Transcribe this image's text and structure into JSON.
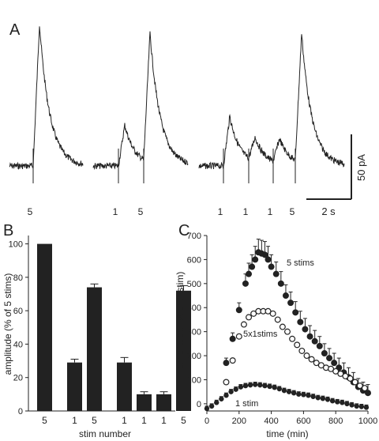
{
  "panel_labels": {
    "a": "A",
    "b": "B",
    "c": "C"
  },
  "colors": {
    "ink": "#222222",
    "open_marker_fill": "#ffffff"
  },
  "traces": {
    "stim_labels": [
      "5",
      "1",
      "5",
      "1",
      "1",
      "1",
      "5"
    ],
    "scale_current": "50 pA",
    "scale_time": "2 s"
  },
  "chart_data": [
    {
      "panel": "A",
      "type": "line",
      "title": "",
      "description_units": {
        "y": "pA",
        "x": "s"
      },
      "segments": [
        {
          "stims": [
            "5"
          ],
          "peak_responses_pA": [
            115
          ]
        },
        {
          "stims": [
            "1",
            "5"
          ],
          "peak_responses_pA": [
            33,
            105
          ]
        },
        {
          "stims": [
            "1",
            "1",
            "1",
            "5"
          ],
          "peak_responses_pA": [
            40,
            20,
            20,
            105
          ]
        }
      ]
    },
    {
      "panel": "B",
      "type": "bar",
      "xlabel": "stim number",
      "ylabel": "amplitude (% of 5 stims)",
      "categories": [
        "5",
        "1",
        "5",
        "1",
        "1",
        "1",
        "5"
      ],
      "groups": [
        [
          0
        ],
        [
          1,
          2
        ],
        [
          3,
          4,
          5,
          6
        ]
      ],
      "values": [
        100,
        29,
        74,
        29,
        10,
        10,
        72
      ],
      "errors": [
        0,
        2,
        2,
        3,
        1.5,
        1.5,
        3
      ],
      "ylim": [
        0,
        105
      ],
      "yticks": [
        0,
        20,
        40,
        60,
        80,
        100
      ]
    },
    {
      "panel": "C",
      "type": "scatter",
      "xlabel": "time (min)",
      "ylabel": "amplitude (% of 1 stim)",
      "xlim": [
        0,
        1000
      ],
      "ylim": [
        -30,
        700
      ],
      "xticks": [
        0,
        200,
        400,
        600,
        800,
        1000
      ],
      "yticks": [
        0,
        100,
        200,
        300,
        400,
        500,
        600,
        700
      ],
      "series": [
        {
          "name": "5 stims",
          "marker": "filled",
          "x": [
            120,
            160,
            200,
            240,
            260,
            280,
            300,
            320,
            340,
            360,
            380,
            400,
            430,
            460,
            490,
            520,
            550,
            580,
            610,
            640,
            670,
            700,
            730,
            760,
            790,
            820,
            850,
            880,
            910,
            940,
            970,
            1000
          ],
          "y": [
            170,
            270,
            390,
            500,
            540,
            570,
            600,
            630,
            625,
            620,
            600,
            570,
            540,
            500,
            450,
            420,
            380,
            340,
            310,
            280,
            260,
            240,
            210,
            190,
            170,
            150,
            130,
            110,
            90,
            70,
            55,
            45
          ],
          "err": [
            20,
            25,
            30,
            40,
            45,
            50,
            55,
            55,
            55,
            55,
            55,
            50,
            50,
            50,
            45,
            45,
            45,
            45,
            45,
            45,
            45,
            40,
            40,
            40,
            40,
            40,
            40,
            40,
            40,
            35,
            35,
            35
          ]
        },
        {
          "name": "5x1stims",
          "marker": "open",
          "x": [
            120,
            160,
            200,
            230,
            260,
            290,
            320,
            350,
            380,
            410,
            440,
            470,
            500,
            530,
            560,
            590,
            620,
            650,
            680,
            710,
            740,
            770,
            800,
            830,
            860,
            890,
            920,
            950,
            980
          ],
          "y": [
            90,
            180,
            280,
            330,
            360,
            375,
            385,
            385,
            385,
            375,
            350,
            320,
            300,
            270,
            245,
            220,
            200,
            185,
            170,
            160,
            150,
            145,
            135,
            125,
            115,
            105,
            90,
            75,
            65
          ]
        },
        {
          "name": "1 stim",
          "marker": "filled-small",
          "x": [
            0,
            30,
            60,
            90,
            120,
            150,
            180,
            210,
            240,
            270,
            300,
            330,
            360,
            390,
            420,
            450,
            480,
            510,
            540,
            570,
            600,
            630,
            660,
            690,
            720,
            750,
            780,
            810,
            840,
            870,
            900,
            930,
            960,
            990
          ],
          "y": [
            -20,
            -10,
            5,
            20,
            35,
            50,
            60,
            70,
            75,
            78,
            80,
            78,
            75,
            72,
            68,
            62,
            55,
            50,
            45,
            40,
            38,
            35,
            30,
            25,
            22,
            18,
            12,
            8,
            5,
            0,
            -5,
            -10,
            -12,
            -15
          ],
          "err": [
            10,
            10,
            10,
            10,
            10,
            10,
            10,
            10,
            10,
            10,
            10,
            10,
            10,
            10,
            10,
            10,
            10,
            10,
            10,
            10,
            10,
            10,
            10,
            10,
            10,
            10,
            10,
            10,
            10,
            10,
            10,
            10,
            10,
            10
          ]
        }
      ],
      "annotations": [
        "5 stims",
        "5x1stims",
        "1 stim"
      ]
    }
  ]
}
